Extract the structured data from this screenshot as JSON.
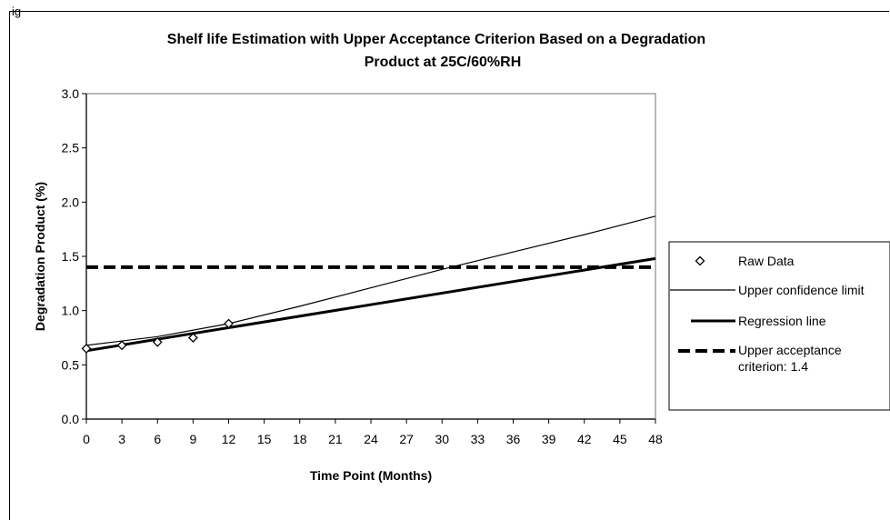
{
  "figure": {
    "label": "ig"
  },
  "chart_data": {
    "type": "line",
    "title_line1": "Shelf life Estimation with Upper Acceptance Criterion Based on a Degradation",
    "title_line2": "Product at  25C/60%RH",
    "xlabel": "Time Point (Months)",
    "ylabel": "Degradation Product (%)",
    "xlim": [
      0,
      48
    ],
    "ylim": [
      0,
      3.0
    ],
    "x_ticks": [
      "0",
      "3",
      "6",
      "9",
      "12",
      "15",
      "18",
      "21",
      "24",
      "27",
      "30",
      "33",
      "36",
      "39",
      "42",
      "45",
      "48"
    ],
    "y_ticks": [
      "0.0",
      "0.5",
      "1.0",
      "1.5",
      "2.0",
      "2.5",
      "3.0"
    ],
    "series": [
      {
        "name": "Raw Data",
        "kind": "points",
        "marker": "diamond",
        "x": [
          0,
          3,
          6,
          9,
          12
        ],
        "y": [
          0.65,
          0.68,
          0.71,
          0.75,
          0.88
        ]
      },
      {
        "name": "Upper confidence limit",
        "kind": "line",
        "style": "thin",
        "x": [
          0,
          6,
          12,
          18,
          24,
          30,
          36,
          42,
          48
        ],
        "y": [
          0.68,
          0.76,
          0.88,
          1.04,
          1.21,
          1.38,
          1.54,
          1.7,
          1.87
        ]
      },
      {
        "name": "Regression line",
        "kind": "line",
        "style": "thick",
        "x": [
          0,
          48
        ],
        "y": [
          0.63,
          1.48
        ]
      },
      {
        "name": "Upper acceptance criterion: 1.4",
        "kind": "hline",
        "style": "dashed",
        "x": [
          0,
          48
        ],
        "y": [
          1.4,
          1.4
        ]
      }
    ],
    "legend": {
      "placement": "right",
      "items": [
        {
          "label": "Raw Data",
          "kind": "points"
        },
        {
          "label": "Upper confidence limit",
          "kind": "thin"
        },
        {
          "label": "Regression line",
          "kind": "thick"
        },
        {
          "label_line1": "Upper acceptance",
          "label_line2": "criterion: 1.4",
          "kind": "dashed"
        }
      ]
    },
    "grid": false
  }
}
